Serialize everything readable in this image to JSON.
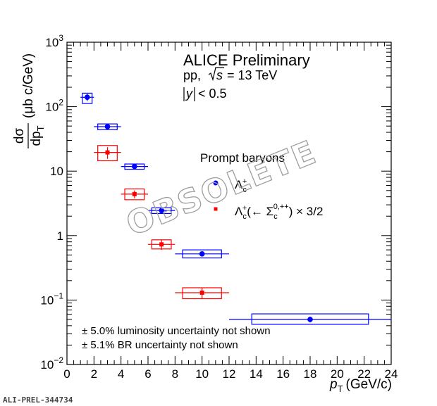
{
  "chart_data": {
    "type": "scatter",
    "title": "ALICE Preliminary",
    "subtitle_system": "pp,",
    "subtitle_energy_label": "s",
    "subtitle_energy_value": "= 13 TeV",
    "rapidity_var": "y",
    "rapidity_cut": "< 0.5",
    "xlabel_main": "p",
    "xlabel_sub": "T",
    "xlabel_unit": "(GeV/c)",
    "ylabel_num": "dσ",
    "ylabel_den": "dp",
    "ylabel_den_sub": "T",
    "ylabel_unit": "(μb c/GeV)",
    "xlim": [
      0,
      24
    ],
    "ylim": [
      0.01,
      1000
    ],
    "yscale": "log",
    "x_ticks": [
      "0",
      "2",
      "4",
      "6",
      "8",
      "10",
      "12",
      "14",
      "16",
      "18",
      "20",
      "22",
      "24"
    ],
    "y_ticks": [
      {
        "value": 0.01,
        "base": "10",
        "exp": "−2"
      },
      {
        "value": 0.1,
        "base": "10",
        "exp": "−1"
      },
      {
        "value": 1,
        "base": "1",
        "exp": ""
      },
      {
        "value": 10,
        "base": "10",
        "exp": ""
      },
      {
        "value": 100,
        "base": "10",
        "exp": "2"
      },
      {
        "value": 1000,
        "base": "10",
        "exp": "3"
      }
    ],
    "legend_header": "Prompt baryons",
    "series": [
      {
        "name": "Λc+",
        "color": "#0000ff",
        "marker": "circle",
        "points": [
          {
            "x": 1.5,
            "xlo": 1,
            "xhi": 2,
            "y": 140,
            "ystat": 18,
            "syslo": 112,
            "syshi": 162
          },
          {
            "x": 3,
            "xlo": 2,
            "xhi": 4,
            "y": 49,
            "ystat": 4,
            "syslo": 44,
            "syshi": 54
          },
          {
            "x": 5,
            "xlo": 4,
            "xhi": 6,
            "y": 11.8,
            "ystat": 0.7,
            "syslo": 10.7,
            "syshi": 12.9
          },
          {
            "x": 7,
            "xlo": 6,
            "xhi": 8,
            "y": 2.45,
            "ystat": 0.15,
            "syslo": 2.2,
            "syshi": 2.7
          },
          {
            "x": 10,
            "xlo": 8,
            "xhi": 12,
            "y": 0.52,
            "ystat": 0.03,
            "syslo": 0.45,
            "syshi": 0.6
          },
          {
            "x": 18,
            "xlo": 12,
            "xhi": 24,
            "y": 0.05,
            "ystat": 0.005,
            "syslo": 0.042,
            "syshi": 0.061
          }
        ]
      },
      {
        "name": "Λc+(← Σc0,++) × 3/2",
        "color": "#ff0000",
        "marker": "square",
        "points": [
          {
            "x": 3,
            "xlo": 2,
            "xhi": 4,
            "y": 19.5,
            "ystat": 4,
            "syslo": 14.5,
            "syshi": 25
          },
          {
            "x": 5,
            "xlo": 4,
            "xhi": 6,
            "y": 4.4,
            "ystat": 0.6,
            "syslo": 3.6,
            "syshi": 5.3
          },
          {
            "x": 7,
            "xlo": 6,
            "xhi": 8,
            "y": 0.73,
            "ystat": 0.13,
            "syslo": 0.62,
            "syshi": 0.86
          },
          {
            "x": 10,
            "xlo": 8,
            "xhi": 12,
            "y": 0.13,
            "ystat": 0.025,
            "syslo": 0.105,
            "syshi": 0.155
          }
        ]
      }
    ],
    "legend_items": [
      {
        "label_base": "Λ",
        "label_sub": "c",
        "label_sup": "+",
        "label_rest": ""
      },
      {
        "label_base": "Λ",
        "label_sub": "c",
        "label_sup": "+",
        "label_rest": "(← Σ",
        "label_sub2": "c",
        "label_sup2": "0,++",
        "label_tail": ") × 3/2"
      }
    ],
    "notes": [
      "± 5.0% luminosity uncertainty not shown",
      "± 5.1% BR uncertainty not shown"
    ],
    "watermark": "OBSOLETE",
    "figure_id": "ALI-PREL-344734"
  }
}
